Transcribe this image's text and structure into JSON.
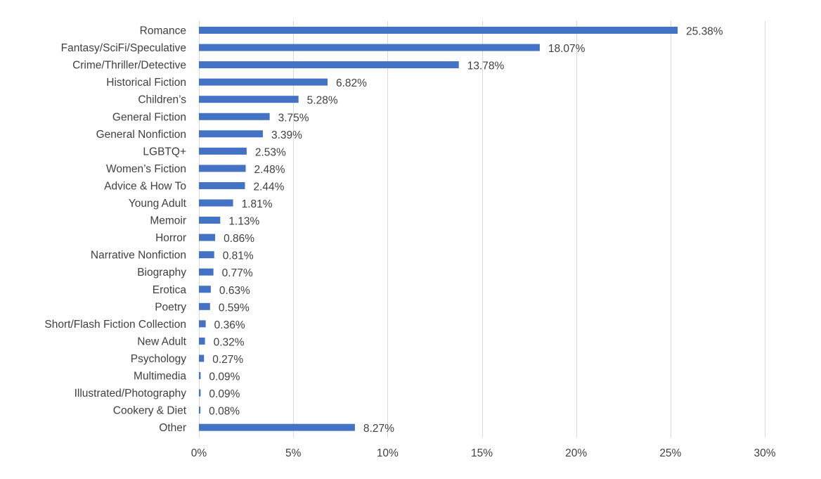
{
  "chart_data": {
    "type": "bar",
    "orientation": "horizontal",
    "title": "",
    "xlabel": "",
    "ylabel": "",
    "xlim": [
      0,
      30
    ],
    "x_ticks": [
      0,
      5,
      10,
      15,
      20,
      25,
      30
    ],
    "x_tick_labels": [
      "0%",
      "5%",
      "10%",
      "15%",
      "20%",
      "25%",
      "30%"
    ],
    "grid": "vertical",
    "legend": "none",
    "bar_color": "#4472c4",
    "categories": [
      "Romance",
      "Fantasy/SciFi/Speculative",
      "Crime/Thriller/Detective",
      "Historical Fiction",
      "Children’s",
      "General Fiction",
      "General Nonfiction",
      "LGBTQ+",
      "Women’s Fiction",
      "Advice & How To",
      "Young Adult",
      "Memoir",
      "Horror",
      "Narrative Nonfiction",
      "Biography",
      "Erotica",
      "Poetry",
      "Short/Flash Fiction Collection",
      "New Adult",
      "Psychology",
      "Multimedia",
      "Illustrated/Photography",
      "Cookery & Diet",
      "Other"
    ],
    "values": [
      25.38,
      18.07,
      13.78,
      6.82,
      5.28,
      3.75,
      3.39,
      2.53,
      2.48,
      2.44,
      1.81,
      1.13,
      0.86,
      0.81,
      0.77,
      0.63,
      0.59,
      0.36,
      0.32,
      0.27,
      0.09,
      0.09,
      0.08,
      8.27
    ],
    "value_labels": [
      "25.38%",
      "18.07%",
      "13.78%",
      "6.82%",
      "5.28%",
      "3.75%",
      "3.39%",
      "2.53%",
      "2.48%",
      "2.44%",
      "1.81%",
      "1.13%",
      "0.86%",
      "0.81%",
      "0.77%",
      "0.63%",
      "0.59%",
      "0.36%",
      "0.32%",
      "0.27%",
      "0.09%",
      "0.09%",
      "0.08%",
      "8.27%"
    ]
  }
}
